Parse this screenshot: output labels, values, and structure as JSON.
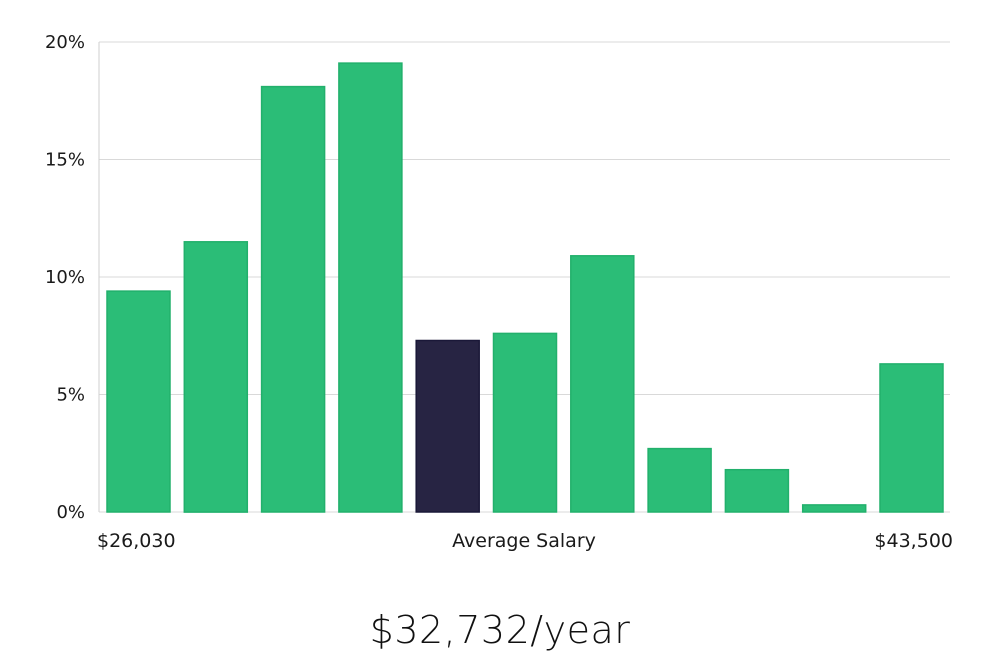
{
  "chart_data": {
    "type": "bar",
    "title": "",
    "xlabel": "",
    "ylabel": "",
    "values": [
      9.4,
      11.5,
      18.1,
      19.1,
      7.3,
      7.6,
      10.9,
      2.7,
      1.8,
      0.3,
      6.3
    ],
    "highlight_index": 4,
    "ylim": [
      0,
      20
    ],
    "y_ticks": [
      0,
      5,
      10,
      15,
      20
    ],
    "y_tick_labels": [
      "0%",
      "5%",
      "10%",
      "15%",
      "20%"
    ],
    "x_labels": {
      "min": "$26,030",
      "center": "Average Salary",
      "max": "$43,500"
    },
    "colors": {
      "bar": "#2bbd77",
      "bar_border": "#22b06c",
      "highlight": "#272443",
      "highlight_border": "#1a1838"
    },
    "grid": true
  },
  "salary_label": "$32,732/year"
}
